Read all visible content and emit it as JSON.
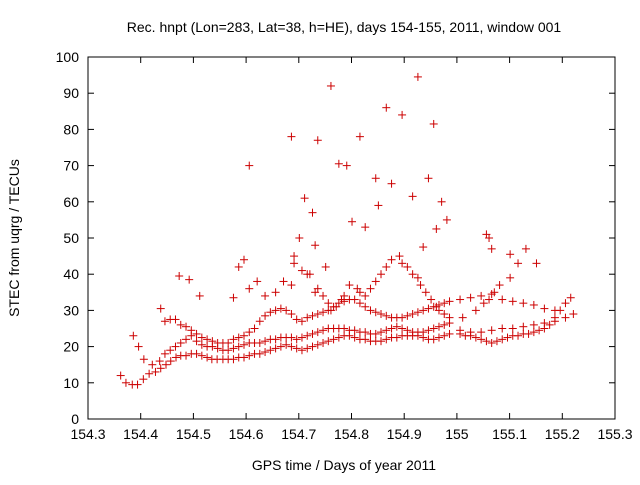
{
  "chart_data": {
    "type": "scatter",
    "title": "Rec. hnpt (Lon=283, Lat=38, h=HE), days 154-155, 2011, window 001",
    "xlabel": "GPS time / Days of year 2011",
    "ylabel": "STEC from uqrg / TECUs",
    "xlim": [
      154.3,
      155.3
    ],
    "ylim": [
      0,
      100
    ],
    "xticks": [
      "154.3",
      "154.4",
      "154.5",
      "154.6",
      "154.7",
      "154.8",
      "154.9",
      "155",
      "155.1",
      "155.2",
      "155.3"
    ],
    "yticks": [
      "0",
      "10",
      "20",
      "30",
      "40",
      "50",
      "60",
      "70",
      "80",
      "90",
      "100"
    ],
    "grid": false,
    "legend": "none",
    "marker": "plus",
    "color": "#cc0000",
    "x": [
      154.362,
      154.372,
      154.384,
      154.394,
      154.405,
      154.416,
      154.428,
      154.438,
      154.448,
      154.457,
      154.467,
      154.476,
      154.486,
      154.496,
      154.506,
      154.516,
      154.526,
      154.535,
      154.545,
      154.556,
      154.566,
      154.576,
      154.586,
      154.596,
      154.606,
      154.616,
      154.626,
      154.636,
      154.646,
      154.656,
      154.666,
      154.676,
      154.686,
      154.696,
      154.706,
      154.716,
      154.726,
      154.736,
      154.746,
      154.756,
      154.766,
      154.776,
      154.786,
      154.796,
      154.806,
      154.816,
      154.826,
      154.836,
      154.846,
      154.856,
      154.866,
      154.876,
      154.886,
      154.896,
      154.906,
      154.916,
      154.926,
      154.936,
      154.946,
      154.956,
      154.966,
      154.976,
      154.986,
      155.006,
      155.016,
      155.026,
      155.036,
      155.046,
      155.056,
      155.066,
      155.076,
      155.086,
      155.096,
      155.106,
      155.116,
      155.126,
      155.136,
      155.146,
      155.156,
      155.166,
      155.176,
      155.186,
      155.196,
      155.206,
      155.216,
      154.386,
      154.396,
      154.406,
      154.422,
      154.436,
      154.446,
      154.456,
      154.466,
      154.476,
      154.486,
      154.496,
      154.506,
      154.516,
      154.526,
      154.536,
      154.546,
      154.556,
      154.566,
      154.576,
      154.586,
      154.596,
      154.606,
      154.616,
      154.626,
      154.636,
      154.646,
      154.656,
      154.666,
      154.676,
      154.686,
      154.696,
      154.706,
      154.716,
      154.726,
      154.736,
      154.746,
      154.756,
      154.766,
      154.776,
      154.786,
      154.796,
      154.806,
      154.816,
      154.826,
      154.836,
      154.846,
      154.856,
      154.866,
      154.876,
      154.886,
      154.896,
      154.906,
      154.916,
      154.926,
      154.936,
      154.946,
      154.956,
      154.966,
      154.976,
      154.986,
      155.006,
      155.026,
      155.046,
      155.066,
      155.086,
      155.106,
      155.126,
      155.146,
      155.166,
      155.186,
      155.206,
      155.221,
      154.446,
      154.456,
      154.466,
      154.476,
      154.486,
      154.496,
      154.506,
      154.516,
      154.526,
      154.536,
      154.546,
      154.556,
      154.566,
      154.576,
      154.586,
      154.596,
      154.606,
      154.616,
      154.626,
      154.636,
      154.646,
      154.656,
      154.666,
      154.676,
      154.686,
      154.696,
      154.706,
      154.716,
      154.726,
      154.736,
      154.746,
      154.756,
      154.766,
      154.776,
      154.786,
      154.796,
      154.806,
      154.816,
      154.826,
      154.836,
      154.846,
      154.856,
      154.866,
      154.876,
      154.886,
      154.896,
      154.906,
      154.916,
      154.926,
      154.936,
      154.946,
      154.956,
      154.966,
      154.976,
      154.986,
      155.006,
      155.026,
      155.046,
      155.066,
      155.086,
      155.106,
      155.126,
      155.146,
      155.166,
      155.186,
      154.438,
      154.473,
      154.492,
      154.512,
      154.576,
      154.586,
      154.596,
      154.606,
      154.621,
      154.636,
      154.656,
      154.671,
      154.686,
      154.691,
      154.706,
      154.716,
      154.721,
      154.731,
      154.736,
      154.746,
      154.756,
      154.761,
      154.771,
      154.781,
      154.786,
      154.796,
      154.811,
      154.816,
      154.826,
      154.836,
      154.846,
      154.856,
      154.866,
      154.876,
      154.891,
      154.896,
      154.906,
      154.916,
      154.926,
      154.931,
      154.941,
      154.951,
      154.961,
      154.966,
      154.976,
      154.986,
      155.011,
      155.036,
      155.051,
      155.061,
      155.071,
      155.081,
      155.101,
      155.116,
      155.131,
      155.151,
      154.606,
      154.686,
      154.691,
      154.701,
      154.711,
      154.726,
      154.731,
      154.736,
      154.751,
      154.761,
      154.776,
      154.791,
      154.801,
      154.816,
      154.826,
      154.846,
      154.851,
      154.866,
      154.876,
      154.896,
      154.916,
      154.926,
      154.936,
      154.946,
      154.956,
      154.961,
      154.971,
      154.981,
      155.056,
      155.061,
      155.066,
      155.101
    ],
    "y": [
      12,
      10,
      9.5,
      9.5,
      11,
      12.5,
      13,
      14,
      15,
      16,
      17,
      17.5,
      17.5,
      18,
      18,
      17.5,
      17,
      16.5,
      16.5,
      16.5,
      16.5,
      16.5,
      17,
      17,
      17.5,
      18,
      18,
      18.5,
      19,
      19.5,
      20,
      20.5,
      20,
      19.5,
      19,
      19.5,
      20,
      20.5,
      21,
      21.5,
      22,
      22.5,
      23,
      23,
      22.5,
      22,
      22,
      21.5,
      21.5,
      21.5,
      22,
      22.5,
      22.5,
      23,
      23,
      23,
      23,
      22.5,
      22,
      22,
      22.5,
      23,
      23.5,
      23.5,
      23,
      23,
      22.5,
      22,
      21.5,
      21,
      21.5,
      22,
      22.5,
      23,
      23,
      23.5,
      23.5,
      24,
      24.5,
      25,
      26,
      28,
      30,
      32,
      33.5,
      23,
      20,
      16.5,
      15,
      16,
      18,
      19,
      20,
      21,
      22,
      23,
      21.5,
      20.5,
      20,
      20,
      19.5,
      19,
      19,
      19.5,
      20,
      20.5,
      21,
      21,
      21,
      21.5,
      22,
      22,
      22.5,
      22.5,
      22.5,
      22,
      22.5,
      23,
      23.5,
      24,
      24.5,
      25,
      25,
      25,
      25,
      24.5,
      24.5,
      24,
      24,
      23.5,
      23.5,
      24,
      24.5,
      25,
      25.5,
      25,
      24.5,
      24,
      24,
      24,
      24.5,
      25,
      25.5,
      26,
      26.5,
      24.5,
      24,
      24,
      24.5,
      25,
      25,
      25.5,
      26,
      26.5,
      27,
      28,
      29,
      27,
      27.5,
      27.5,
      26,
      25.5,
      24.5,
      23.5,
      22.5,
      22,
      21.5,
      21,
      21,
      21,
      22,
      22.5,
      23,
      24,
      25,
      27,
      28.5,
      29.5,
      30,
      30.5,
      30,
      29,
      27.5,
      27,
      28,
      28.5,
      29,
      29.5,
      30,
      31,
      32,
      32.5,
      33,
      33,
      32,
      31,
      30,
      29.5,
      29,
      28.5,
      28,
      28,
      28,
      28.5,
      29,
      29.5,
      30,
      30.5,
      31,
      31.5,
      32,
      32.5,
      33,
      33.5,
      34,
      34.5,
      33,
      32.5,
      32,
      31.5,
      30.5,
      30,
      30.5,
      39.5,
      38.5,
      34,
      33.5,
      42,
      44,
      36,
      38,
      34,
      35,
      38,
      37,
      43,
      41,
      40,
      40,
      35,
      36,
      34,
      32,
      30,
      31,
      33,
      34,
      37,
      36,
      35,
      34,
      36,
      38,
      40,
      42,
      44,
      45,
      43,
      42,
      40,
      39,
      37,
      35,
      33,
      31,
      30,
      29,
      28,
      28,
      30,
      32,
      33,
      35,
      37,
      39,
      43,
      47,
      43,
      70,
      78,
      45,
      50,
      61,
      57,
      48,
      77,
      42,
      92,
      70.5,
      70,
      54.5,
      78,
      53,
      66.5,
      59,
      86,
      65,
      84,
      61.5,
      94.5,
      47.5,
      66.5,
      81.5,
      52.5,
      60,
      55,
      51,
      50,
      47,
      45.5
    ]
  }
}
